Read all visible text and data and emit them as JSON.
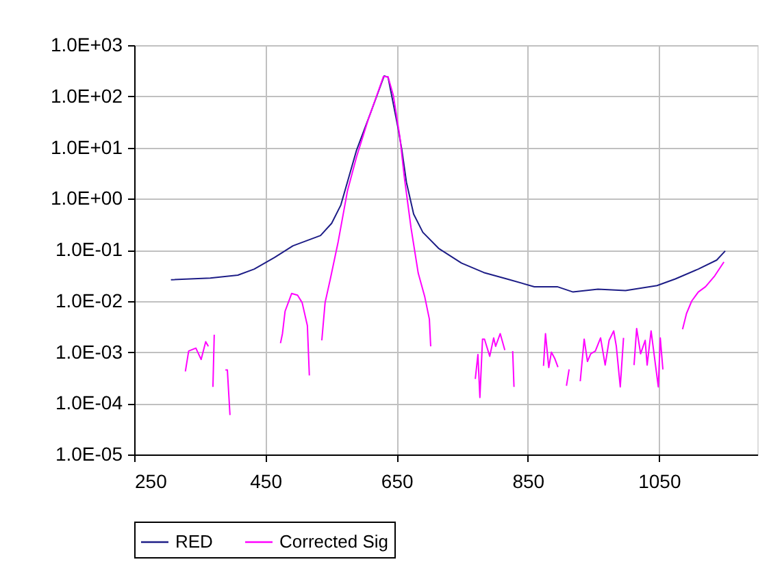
{
  "chart_data": {
    "type": "line",
    "xlim": [
      250,
      1200
    ],
    "xticks": [
      250,
      450,
      650,
      850,
      1050
    ],
    "ylim": [
      1e-05,
      1000
    ],
    "log": true,
    "yticks": [
      {
        "value": 1e-05,
        "label": "1.0E-05"
      },
      {
        "value": 0.0001,
        "label": "1.0E-04"
      },
      {
        "value": 0.001,
        "label": "1.0E-03"
      },
      {
        "value": 0.01,
        "label": "1.0E-02"
      },
      {
        "value": 0.1,
        "label": "1.0E-01"
      },
      {
        "value": 1,
        "label": "1.0E+00"
      },
      {
        "value": 10,
        "label": "1.0E+01"
      },
      {
        "value": 100,
        "label": "1.0E+02"
      },
      {
        "value": 1000,
        "label": "1.0E+03"
      }
    ],
    "grid": true,
    "legend": "bottom",
    "line_style": "solid",
    "marker": "none",
    "series": [
      {
        "name": "RED",
        "color": "#1c1c86",
        "x": [
          306,
          366,
          408,
          433,
          464,
          492,
          534,
          551,
          565,
          589,
          610,
          631,
          637,
          652,
          658,
          665,
          676,
          690,
          714,
          749,
          783,
          818,
          860,
          895,
          919,
          957,
          999,
          1047,
          1075,
          1110,
          1138,
          1151
        ],
        "values": [
          0.026,
          0.028,
          0.032,
          0.042,
          0.071,
          0.12,
          0.19,
          0.33,
          0.75,
          8.9,
          46,
          250,
          237,
          25,
          9,
          2.1,
          0.5,
          0.22,
          0.107,
          0.055,
          0.036,
          0.027,
          0.019,
          0.019,
          0.015,
          0.017,
          0.016,
          0.02,
          0.027,
          0.042,
          0.063,
          0.095
        ]
      },
      {
        "name": "Corrected Sig",
        "color": "#ff00ff",
        "x": [
          328,
          333,
          344,
          352,
          359,
          363,
          366,
          370,
          372,
          380,
          389,
          392,
          396,
          430,
          473,
          476,
          480,
          490,
          499,
          506,
          514,
          517,
          525,
          536,
          541,
          549,
          561,
          575,
          589,
          607,
          621,
          630,
          637,
          645,
          655,
          662,
          672,
          683,
          693,
          700,
          702,
          740,
          770,
          774,
          777,
          781,
          784,
          792,
          798,
          801,
          808,
          815,
          821,
          827,
          829,
          850,
          874,
          877,
          882,
          886,
          891,
          896,
          902,
          909,
          913,
          920,
          930,
          936,
          941,
          946,
          953,
          961,
          968,
          974,
          981,
          985,
          991,
          996,
          1004,
          1012,
          1016,
          1022,
          1029,
          1032,
          1038,
          1049,
          1052,
          1056,
          1070,
          1086,
          1092,
          1100,
          1110,
          1121,
          1135,
          1149
        ],
        "values": [
          0.00042,
          0.00105,
          0.0012,
          0.00072,
          0.0016,
          0.0013,
          null,
          0.00021,
          0.0022,
          null,
          0.00045,
          0.00045,
          5.9e-05,
          null,
          0.0015,
          0.0023,
          0.0063,
          0.014,
          0.013,
          0.0093,
          0.0033,
          0.00035,
          null,
          0.0017,
          0.0093,
          0.027,
          0.145,
          1.4,
          6.6,
          36,
          115,
          245,
          240,
          105,
          16,
          2.5,
          0.27,
          0.035,
          0.012,
          0.0044,
          0.0013,
          null,
          0.0003,
          0.0009,
          0.00013,
          0.0018,
          0.0018,
          0.00083,
          0.0019,
          0.0013,
          0.0023,
          0.0011,
          null,
          0.00105,
          0.00021,
          null,
          0.00054,
          0.0023,
          0.0005,
          0.001,
          0.00076,
          0.00051,
          null,
          0.00022,
          0.00046,
          null,
          0.00027,
          0.0018,
          0.00066,
          0.00093,
          0.00105,
          0.0019,
          0.00056,
          0.0017,
          0.0026,
          0.0013,
          0.00021,
          0.0019,
          null,
          0.00056,
          0.0029,
          0.00093,
          0.0017,
          0.00056,
          0.0026,
          0.00021,
          0.0019,
          0.00046,
          null,
          0.0028,
          0.0057,
          0.01,
          0.015,
          0.019,
          0.031,
          0.058
        ]
      }
    ]
  }
}
